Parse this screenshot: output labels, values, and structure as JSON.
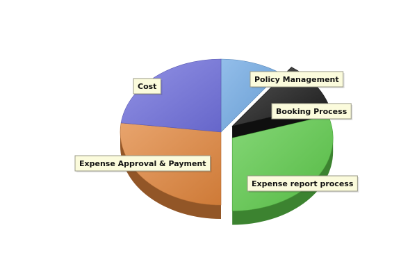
{
  "chart_data": {
    "type": "pie",
    "style": "3d-exploded",
    "title": "",
    "series": [
      {
        "label": "Policy Management",
        "value": 10,
        "color": "#6fa8e3",
        "exploded": false
      },
      {
        "label": "Booking Process",
        "value": 10,
        "color": "#1c1c1c",
        "exploded": true
      },
      {
        "label": "Expense report process",
        "value": 30,
        "color": "#5cc94a",
        "exploded": true
      },
      {
        "label": "Expense Approval & Payment",
        "value": 27,
        "color": "#e0853c",
        "exploded": false
      },
      {
        "label": "Cost",
        "value": 23,
        "color": "#6f6fdc",
        "exploded": false
      }
    ],
    "start_angle_deg": -90,
    "direction": "clockwise",
    "legend": "none"
  }
}
